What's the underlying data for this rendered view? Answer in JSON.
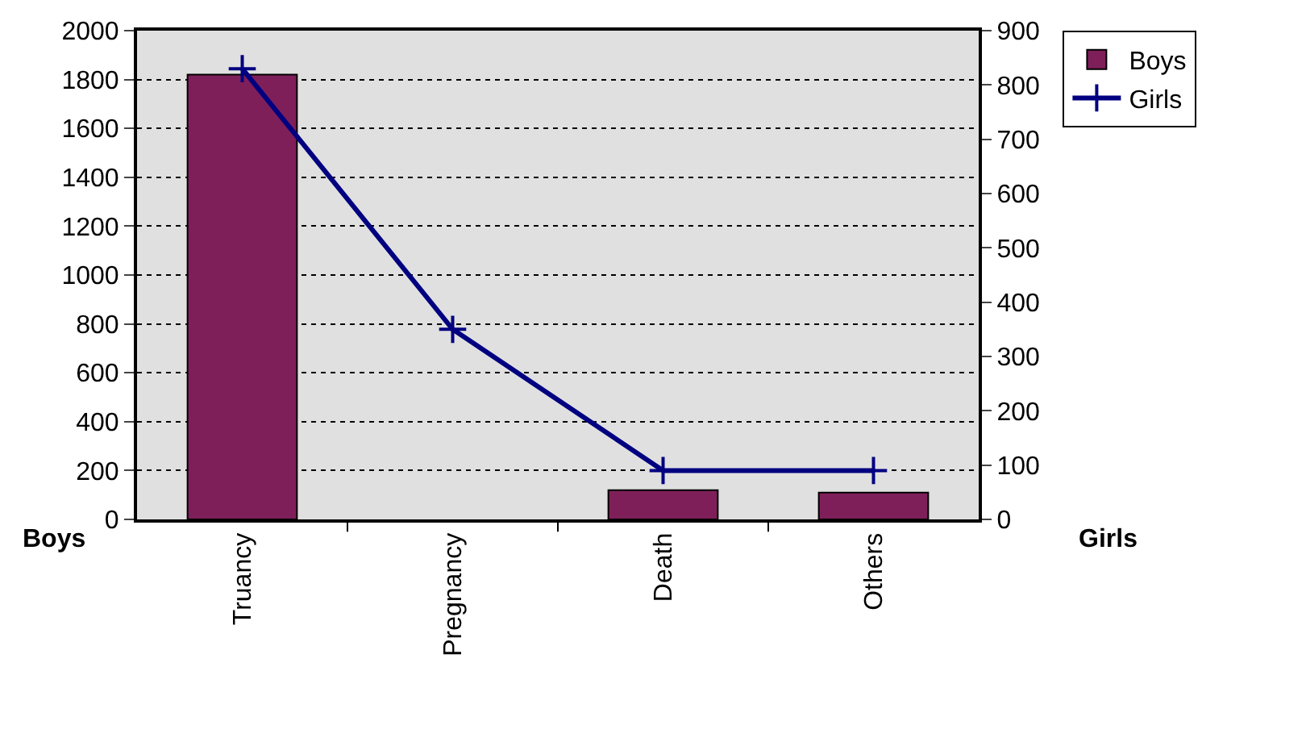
{
  "chart_data": {
    "type": "bar",
    "categories": [
      "Truancy",
      "Pregnancy",
      "Death",
      "Others"
    ],
    "series": [
      {
        "name": "Boys",
        "color": "#7f1f5a",
        "values": [
          1820,
          null,
          120,
          110
        ]
      },
      {
        "name": "Girls",
        "type": "line",
        "axis": "y2",
        "color": "#000080",
        "values": [
          830,
          350,
          90,
          90
        ],
        "marker": "cross"
      }
    ],
    "ylabel": "Boys",
    "y2label": "Girls",
    "ylim": [
      0,
      2000
    ],
    "yticks": [
      0,
      200,
      400,
      600,
      800,
      1000,
      1200,
      1400,
      1600,
      1800,
      2000
    ],
    "y2lim": [
      0,
      900
    ],
    "y2ticks": [
      0,
      100,
      200,
      300,
      400,
      500,
      600,
      700,
      800,
      900
    ],
    "grid": "y",
    "legend": "top right"
  }
}
